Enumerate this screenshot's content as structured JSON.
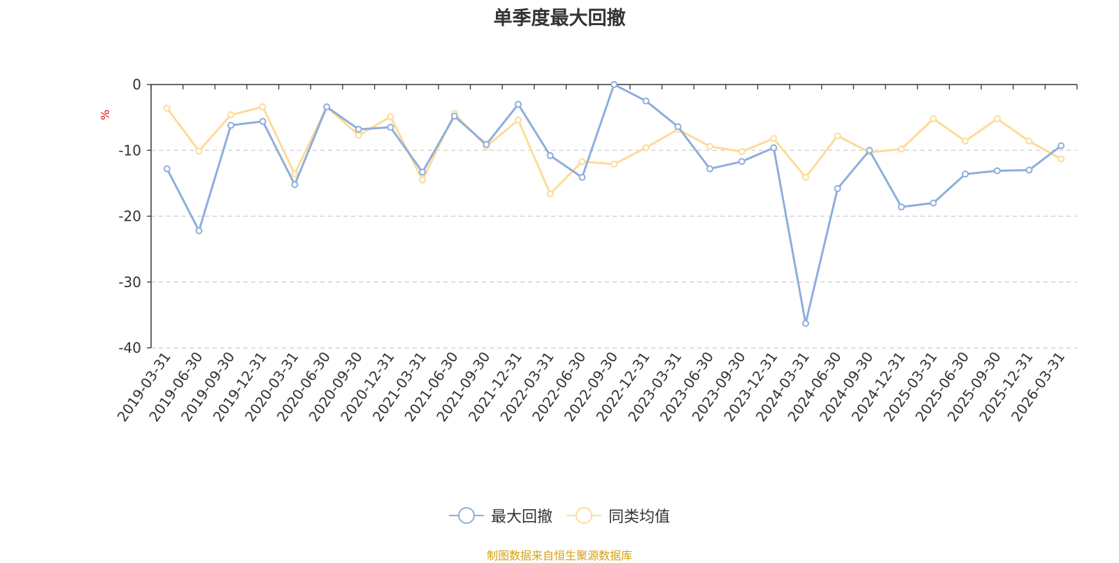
{
  "chart_data": {
    "type": "line",
    "title": "单季度最大回撤",
    "ylabel": "%",
    "ylim": [
      -40,
      0
    ],
    "yticks": [
      0,
      -10,
      -20,
      -30,
      -40
    ],
    "grid": true,
    "legend_position": "bottom-center",
    "categories": [
      "2019-03-31",
      "2019-06-30",
      "2019-09-30",
      "2019-12-31",
      "2020-03-31",
      "2020-06-30",
      "2020-09-30",
      "2020-12-31",
      "2021-03-31",
      "2021-06-30",
      "2021-09-30",
      "2021-12-31",
      "2022-03-31",
      "2022-06-30",
      "2022-09-30",
      "2022-12-31",
      "2023-03-31",
      "2023-06-30",
      "2023-09-30",
      "2023-12-31",
      "2024-03-31",
      "2024-06-30",
      "2024-09-30",
      "2024-12-31",
      "2025-03-31",
      "2025-06-30",
      "2025-09-30",
      "2025-12-31",
      "2026-03-31"
    ],
    "series": [
      {
        "name": "最大回撤",
        "color": "#8eaedb",
        "values": [
          -12.8,
          -22.2,
          -6.2,
          -5.6,
          -15.2,
          -3.4,
          -6.8,
          -6.5,
          -13.3,
          -4.8,
          -9.1,
          -3.0,
          -10.8,
          -14.1,
          0.0,
          -2.5,
          -6.4,
          -12.8,
          -11.7,
          -9.6,
          -36.3,
          -15.8,
          -10.0,
          -18.6,
          -18.0,
          -13.6,
          -13.1,
          -13.0,
          -9.3
        ]
      },
      {
        "name": "同类均值",
        "color": "#fddb98",
        "values": [
          -3.6,
          -10.1,
          -4.6,
          -3.4,
          -13.6,
          -3.4,
          -7.7,
          -4.9,
          -14.5,
          -4.4,
          -9.4,
          -5.4,
          -16.6,
          -11.7,
          -12.1,
          -9.6,
          -6.8,
          -9.4,
          -10.2,
          -8.2,
          -14.1,
          -7.8,
          -10.3,
          -9.8,
          -5.2,
          -8.6,
          -5.2,
          -8.6,
          -11.3
        ]
      }
    ]
  },
  "source_text": "制图数据来自恒生聚源数据库"
}
